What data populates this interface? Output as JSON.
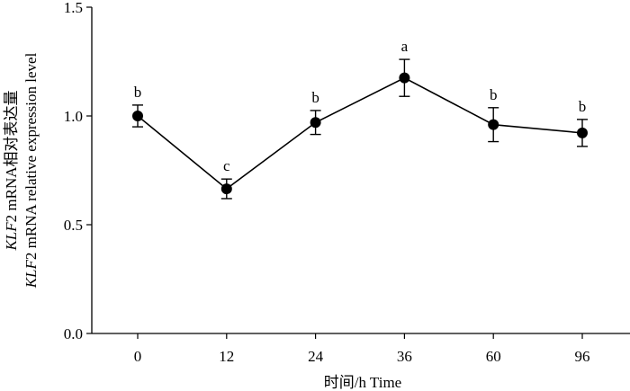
{
  "chart_data": {
    "type": "line",
    "categories": [
      "0",
      "12",
      "24",
      "36",
      "60",
      "96"
    ],
    "values": [
      1.0,
      0.665,
      0.97,
      1.175,
      0.96,
      0.922
    ],
    "errors": [
      0.05,
      0.045,
      0.055,
      0.085,
      0.078,
      0.062
    ],
    "significance": [
      "b",
      "c",
      "b",
      "a",
      "b",
      "b"
    ],
    "xlabel": "时间/h  Time",
    "ylabel_line1_italic": "KLF",
    "ylabel_line1_rest": "2 mRNA相对表达量",
    "ylabel_line2_italic": "KLF",
    "ylabel_line2_rest": "2 mRNA relative expression level",
    "ylim": [
      0.0,
      1.5
    ],
    "yticks": [
      "0.0",
      "0.5",
      "1.0",
      "1.5"
    ],
    "grid": false,
    "colors": {
      "line": "#000000",
      "marker": "#000000"
    }
  }
}
